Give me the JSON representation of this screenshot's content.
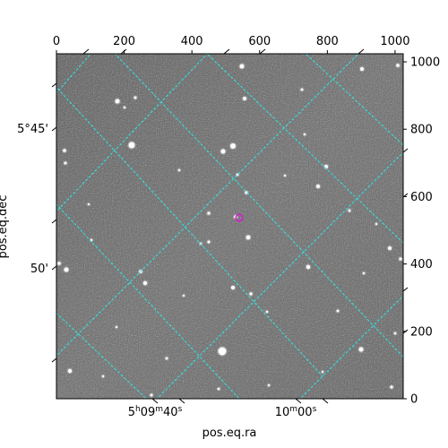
{
  "axes": {
    "xlabel": "pos.eq.ra",
    "ylabel": "pos.eq.dec",
    "top_ticks": [
      "0",
      "200",
      "400",
      "600",
      "800",
      "1000"
    ],
    "right_ticks": [
      "0",
      "200",
      "400",
      "600",
      "800",
      "1000"
    ],
    "bottom_ticks": [
      {
        "h": "5",
        "m": "09",
        "s": "40"
      },
      {
        "h": "",
        "m": "10",
        "s": "00"
      }
    ],
    "left_ticks": [
      "5°45'",
      "50'"
    ]
  },
  "colors": {
    "grid": "#2ee8e8",
    "marker": "#d21fd2",
    "sky": "#777777"
  }
}
